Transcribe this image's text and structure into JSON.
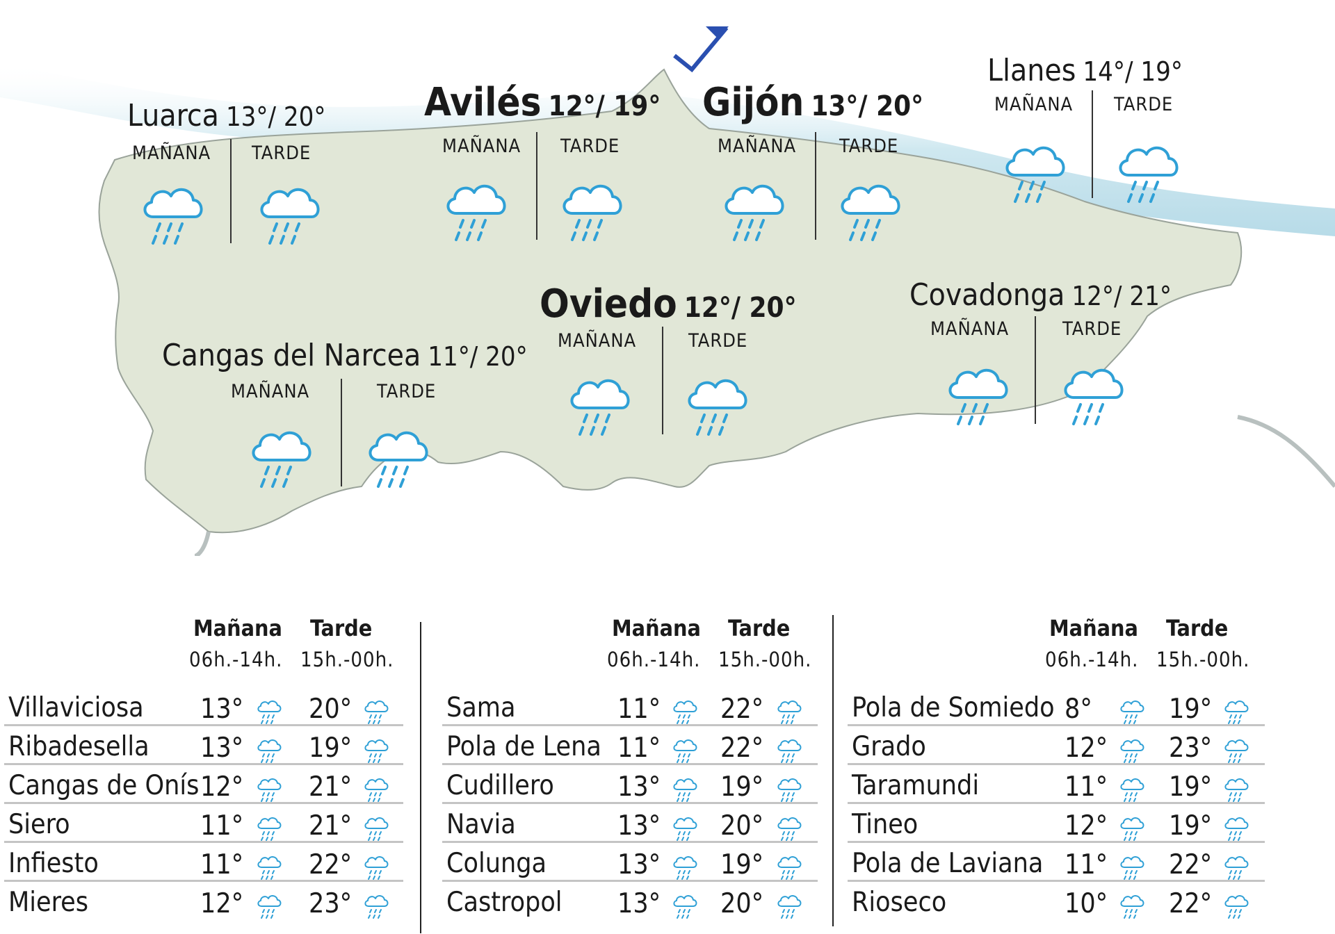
{
  "colors": {
    "land": "#e1e7d7",
    "sea": "#cfe8f0",
    "border": "#7d8a88",
    "icon": "#2fa0d6"
  },
  "map": {
    "slot_labels": {
      "morning": "MAÑANA",
      "afternoon": "TARDE"
    },
    "cities": [
      {
        "name": "Luarca",
        "temps": "13°/ 20°",
        "morning_icon": "rain-icon",
        "afternoon_icon": "rain-icon"
      },
      {
        "name": "Avilés",
        "temps": "12°/ 19°",
        "morning_icon": "rain-icon",
        "afternoon_icon": "rain-icon"
      },
      {
        "name": "Gijón",
        "temps": "13°/ 20°",
        "morning_icon": "rain-icon",
        "afternoon_icon": "rain-icon"
      },
      {
        "name": "Llanes",
        "temps": "14°/ 19°",
        "morning_icon": "rain-icon",
        "afternoon_icon": "rain-icon"
      },
      {
        "name": "Oviedo",
        "temps": "12°/ 20°",
        "morning_icon": "rain-icon",
        "afternoon_icon": "rain-icon"
      },
      {
        "name": "Covadonga",
        "temps": "12°/ 21°",
        "morning_icon": "rain-icon",
        "afternoon_icon": "rain-icon"
      },
      {
        "name": "Cangas del Narcea",
        "temps": "11°/ 20°",
        "morning_icon": "rain-icon",
        "afternoon_icon": "rain-icon"
      }
    ]
  },
  "table_headers": {
    "morning": "Mañana",
    "afternoon": "Tarde",
    "morning_hours": "06h.-14h.",
    "afternoon_hours": "15h.-00h."
  },
  "tables": [
    {
      "rows": [
        {
          "name": "Villaviciosa",
          "morning": "13°",
          "afternoon": "20°"
        },
        {
          "name": "Ribadesella",
          "morning": "13°",
          "afternoon": "19°"
        },
        {
          "name": "Cangas de Onís",
          "morning": "12°",
          "afternoon": "21°"
        },
        {
          "name": "Siero",
          "morning": "11°",
          "afternoon": "21°"
        },
        {
          "name": "Infiesto",
          "morning": "11°",
          "afternoon": "22°"
        },
        {
          "name": "Mieres",
          "morning": "12°",
          "afternoon": "23°"
        }
      ]
    },
    {
      "rows": [
        {
          "name": "Sama",
          "morning": "11°",
          "afternoon": "22°"
        },
        {
          "name": "Pola de Lena",
          "morning": "11°",
          "afternoon": "22°"
        },
        {
          "name": "Cudillero",
          "morning": "13°",
          "afternoon": "19°"
        },
        {
          "name": "Navia",
          "morning": "13°",
          "afternoon": "20°"
        },
        {
          "name": "Colunga",
          "morning": "13°",
          "afternoon": "19°"
        },
        {
          "name": "Castropol",
          "morning": "13°",
          "afternoon": "20°"
        }
      ]
    },
    {
      "rows": [
        {
          "name": "Pola de Somiedo",
          "morning": "8°",
          "afternoon": "19°"
        },
        {
          "name": "Grado",
          "morning": "12°",
          "afternoon": "23°"
        },
        {
          "name": "Taramundi",
          "morning": "11°",
          "afternoon": "19°"
        },
        {
          "name": "Tineo",
          "morning": "12°",
          "afternoon": "19°"
        },
        {
          "name": "Pola de Laviana",
          "morning": "11°",
          "afternoon": "22°"
        },
        {
          "name": "Rioseco",
          "morning": "10°",
          "afternoon": "22°"
        }
      ]
    }
  ]
}
